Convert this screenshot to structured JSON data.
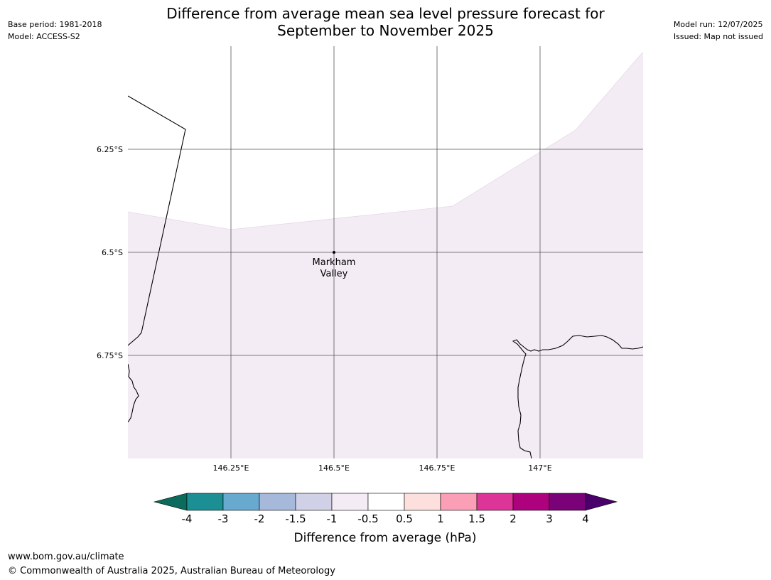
{
  "header": {
    "title_line1": "Difference from average mean sea level pressure forecast for",
    "title_line2": "September to November 2025",
    "base_period": "Base period: 1981-2018",
    "model": "Model: ACCESS-S2",
    "model_run": "Model run: 12/07/2025",
    "issued": "Issued: Map not issued"
  },
  "map": {
    "lon_range": [
      146.0,
      147.25
    ],
    "lat_range": [
      -6.0,
      -7.0
    ],
    "lon_ticks": [
      {
        "value": 146.25,
        "label": "146.25°E"
      },
      {
        "value": 146.5,
        "label": "146.5°E"
      },
      {
        "value": 146.75,
        "label": "146.75°E"
      },
      {
        "value": 147.0,
        "label": "147°E"
      }
    ],
    "lat_ticks": [
      {
        "value": -6.25,
        "label": "6.25°S"
      },
      {
        "value": -6.5,
        "label": "6.5°S"
      },
      {
        "value": -6.75,
        "label": "6.75°S"
      }
    ],
    "place": {
      "name_line1": "Markham",
      "name_line2": "Valley",
      "lon": 146.5,
      "lat": -6.5
    },
    "shaded_class_color": "#f4ecf5",
    "line_color": "#000000",
    "grid_color": "#555555"
  },
  "colorbar": {
    "title": "Difference from average (hPa)",
    "tick_labels": [
      "-4",
      "-3",
      "-2",
      "-1.5",
      "-1",
      "-0.5",
      "0.5",
      "1",
      "1.5",
      "2",
      "3",
      "4"
    ],
    "under_color": "#0b6b5c",
    "over_color": "#4a006a",
    "colors": [
      "#1b8f94",
      "#67a9cf",
      "#a6b9db",
      "#d0d1e6",
      "#f4ecf5",
      "#ffffff",
      "#fde0dd",
      "#fa9fb5",
      "#dd3497",
      "#ae017e",
      "#7a0177"
    ]
  },
  "footer": {
    "url": "www.bom.gov.au/climate",
    "copyright": "© Commonwealth of Australia 2025, Australian Bureau of Meteorology"
  }
}
